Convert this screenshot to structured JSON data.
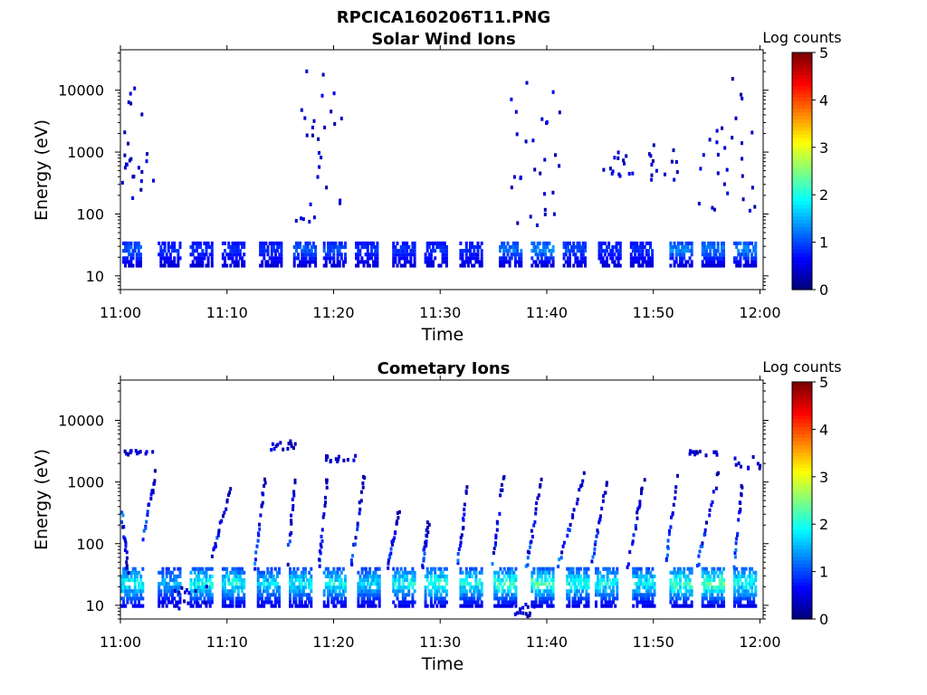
{
  "figure": {
    "title": "RPCICA160206T11.PNG"
  },
  "chart_data": [
    {
      "type": "heatmap",
      "title": "Solar Wind Ions",
      "xlabel": "Time",
      "ylabel": "Energy (eV)",
      "yscale": "log",
      "ylim": [
        6,
        45000
      ],
      "xlim": [
        "11:00",
        "12:00"
      ],
      "x_ticks": [
        "11:00",
        "11:10",
        "11:20",
        "11:30",
        "11:40",
        "11:50",
        "12:00"
      ],
      "y_ticks": [
        10,
        100,
        1000,
        10000
      ],
      "y_tick_labels": [
        "10",
        "100",
        "1000",
        "10000"
      ],
      "colorbar": {
        "label": "Log counts",
        "range": [
          0,
          5
        ],
        "ticks": [
          "0",
          "1",
          "2",
          "3",
          "4",
          "5"
        ],
        "colormap": "jet"
      },
      "grid": false,
      "clusters": [
        {
          "t": 0.8,
          "e": [
            18,
            35
          ],
          "c": [
            0.4,
            1.3
          ]
        },
        {
          "t": 4.5,
          "e": [
            18,
            35
          ],
          "c": [
            0.4,
            1.0
          ]
        },
        {
          "t": 7.5,
          "e": [
            18,
            35
          ],
          "c": [
            0.4,
            1.0
          ]
        },
        {
          "t": 10.5,
          "e": [
            18,
            35
          ],
          "c": [
            0.4,
            1.0
          ]
        },
        {
          "t": 14.0,
          "e": [
            18,
            35
          ],
          "c": [
            0.4,
            1.0
          ]
        },
        {
          "t": 17.2,
          "e": [
            18,
            35
          ],
          "c": [
            0.4,
            1.3
          ]
        },
        {
          "t": 20.0,
          "e": [
            18,
            35
          ],
          "c": [
            0.4,
            1.2
          ]
        },
        {
          "t": 23.0,
          "e": [
            18,
            35
          ],
          "c": [
            0.4,
            1.0
          ]
        },
        {
          "t": 26.5,
          "e": [
            18,
            35
          ],
          "c": [
            0.4,
            1.0
          ]
        },
        {
          "t": 29.5,
          "e": [
            18,
            35
          ],
          "c": [
            0.4,
            1.0
          ]
        },
        {
          "t": 32.8,
          "e": [
            18,
            35
          ],
          "c": [
            0.4,
            1.0
          ]
        },
        {
          "t": 36.5,
          "e": [
            18,
            35
          ],
          "c": [
            0.4,
            1.4
          ]
        },
        {
          "t": 39.5,
          "e": [
            18,
            35
          ],
          "c": [
            0.4,
            1.6
          ]
        },
        {
          "t": 42.5,
          "e": [
            18,
            35
          ],
          "c": [
            0.4,
            1.2
          ]
        },
        {
          "t": 45.8,
          "e": [
            18,
            35
          ],
          "c": [
            0.4,
            1.0
          ]
        },
        {
          "t": 48.8,
          "e": [
            18,
            35
          ],
          "c": [
            0.4,
            1.0
          ]
        },
        {
          "t": 52.5,
          "e": [
            18,
            35
          ],
          "c": [
            0.4,
            1.5
          ]
        },
        {
          "t": 55.5,
          "e": [
            18,
            35
          ],
          "c": [
            0.4,
            1.5
          ]
        },
        {
          "t": 58.5,
          "e": [
            18,
            35
          ],
          "c": [
            0.4,
            1.6
          ]
        }
      ],
      "scatter": [
        {
          "t": 0.5,
          "e": [
            80,
            3000
          ]
        },
        {
          "t": 1.5,
          "e": [
            300,
            15000
          ]
        },
        {
          "t": 17.5,
          "e": [
            60,
            20000
          ]
        },
        {
          "t": 19.5,
          "e": [
            60,
            10000
          ]
        },
        {
          "t": 38.0,
          "e": [
            60,
            15000
          ]
        },
        {
          "t": 40.0,
          "e": [
            60,
            15000
          ]
        },
        {
          "t": 46.5,
          "e": [
            300,
            1000
          ]
        },
        {
          "t": 51.0,
          "e": [
            300,
            1500
          ]
        },
        {
          "t": 55.5,
          "e": [
            100,
            3000
          ]
        },
        {
          "t": 58.0,
          "e": [
            100,
            18000
          ]
        }
      ]
    },
    {
      "type": "heatmap",
      "title": "Cometary Ions",
      "xlabel": "Time",
      "ylabel": "Energy (eV)",
      "yscale": "log",
      "ylim": [
        6,
        45000
      ],
      "xlim": [
        "11:00",
        "12:00"
      ],
      "x_ticks": [
        "11:00",
        "11:10",
        "11:20",
        "11:30",
        "11:40",
        "11:50",
        "12:00"
      ],
      "y_ticks": [
        10,
        100,
        1000,
        10000
      ],
      "y_tick_labels": [
        "10",
        "100",
        "1000",
        "10000"
      ],
      "colorbar": {
        "label": "Log counts",
        "range": [
          0,
          5
        ],
        "ticks": [
          "0",
          "1",
          "2",
          "3",
          "4",
          "5"
        ],
        "colormap": "jet"
      },
      "grid": false,
      "clusters": [
        {
          "t": 1.0,
          "e": [
            12,
            38
          ],
          "c": [
            0.6,
            2.3
          ]
        },
        {
          "t": 4.5,
          "e": [
            12,
            38
          ],
          "c": [
            0.4,
            1.8
          ]
        },
        {
          "t": 7.5,
          "e": [
            12,
            38
          ],
          "c": [
            0.5,
            2.4
          ]
        },
        {
          "t": 10.5,
          "e": [
            12,
            38
          ],
          "c": [
            0.5,
            2.3
          ]
        },
        {
          "t": 13.8,
          "e": [
            12,
            38
          ],
          "c": [
            0.5,
            2.0
          ]
        },
        {
          "t": 16.8,
          "e": [
            12,
            38
          ],
          "c": [
            0.5,
            2.2
          ]
        },
        {
          "t": 20.0,
          "e": [
            12,
            38
          ],
          "c": [
            0.5,
            2.3
          ]
        },
        {
          "t": 23.2,
          "e": [
            12,
            38
          ],
          "c": [
            0.5,
            2.0
          ]
        },
        {
          "t": 26.5,
          "e": [
            12,
            38
          ],
          "c": [
            0.5,
            2.3
          ]
        },
        {
          "t": 29.5,
          "e": [
            12,
            38
          ],
          "c": [
            0.5,
            2.5
          ]
        },
        {
          "t": 32.8,
          "e": [
            12,
            38
          ],
          "c": [
            0.5,
            2.4
          ]
        },
        {
          "t": 36.0,
          "e": [
            12,
            38
          ],
          "c": [
            0.5,
            2.6
          ]
        },
        {
          "t": 39.5,
          "e": [
            12,
            38
          ],
          "c": [
            0.5,
            2.6
          ]
        },
        {
          "t": 42.8,
          "e": [
            12,
            38
          ],
          "c": [
            0.5,
            2.4
          ]
        },
        {
          "t": 45.5,
          "e": [
            12,
            38
          ],
          "c": [
            0.5,
            2.3
          ]
        },
        {
          "t": 49.0,
          "e": [
            12,
            38
          ],
          "c": [
            0.5,
            2.2
          ]
        },
        {
          "t": 52.5,
          "e": [
            12,
            38
          ],
          "c": [
            0.5,
            2.7
          ]
        },
        {
          "t": 55.5,
          "e": [
            12,
            38
          ],
          "c": [
            0.5,
            2.8
          ]
        },
        {
          "t": 58.5,
          "e": [
            12,
            38
          ],
          "c": [
            0.5,
            2.4
          ]
        }
      ],
      "streaks": [
        {
          "t0": 0.0,
          "t1": 0.6,
          "e0": 300,
          "e1": 30
        },
        {
          "t0": 2.0,
          "t1": 3.2,
          "e0": 120,
          "e1": 1300
        },
        {
          "t0": 8.5,
          "t1": 10.2,
          "e0": 60,
          "e1": 700
        },
        {
          "t0": 12.5,
          "t1": 13.5,
          "e0": 40,
          "e1": 1200
        },
        {
          "t0": 15.5,
          "t1": 16.3,
          "e0": 40,
          "e1": 1100
        },
        {
          "t0": 18.5,
          "t1": 19.3,
          "e0": 40,
          "e1": 1100
        },
        {
          "t0": 21.5,
          "t1": 22.8,
          "e0": 40,
          "e1": 1200
        },
        {
          "t0": 25.0,
          "t1": 26.0,
          "e0": 40,
          "e1": 300
        },
        {
          "t0": 28.2,
          "t1": 28.8,
          "e0": 40,
          "e1": 200
        },
        {
          "t0": 31.5,
          "t1": 32.5,
          "e0": 40,
          "e1": 900
        },
        {
          "t0": 34.8,
          "t1": 35.8,
          "e0": 40,
          "e1": 1200
        },
        {
          "t0": 38.0,
          "t1": 39.3,
          "e0": 40,
          "e1": 1000
        },
        {
          "t0": 41.0,
          "t1": 43.5,
          "e0": 40,
          "e1": 1400
        },
        {
          "t0": 44.0,
          "t1": 45.5,
          "e0": 40,
          "e1": 900
        },
        {
          "t0": 47.5,
          "t1": 49.0,
          "e0": 40,
          "e1": 1000
        },
        {
          "t0": 51.0,
          "t1": 52.2,
          "e0": 40,
          "e1": 1300
        },
        {
          "t0": 54.0,
          "t1": 56.0,
          "e0": 40,
          "e1": 1300
        },
        {
          "t0": 57.5,
          "t1": 58.2,
          "e0": 40,
          "e1": 1000
        }
      ],
      "scatter": [
        {
          "t": 15.0,
          "e": [
            3000,
            4500
          ]
        },
        {
          "t": 20.5,
          "e": [
            2000,
            2500
          ]
        },
        {
          "t": 1.8,
          "e": [
            2500,
            3000
          ]
        },
        {
          "t": 54.5,
          "e": [
            2500,
            3000
          ]
        },
        {
          "t": 59.0,
          "e": [
            1500,
            2500
          ]
        },
        {
          "t": 6.5,
          "e": [
            8,
            20
          ]
        },
        {
          "t": 37.5,
          "e": [
            6,
            10
          ]
        }
      ]
    }
  ]
}
